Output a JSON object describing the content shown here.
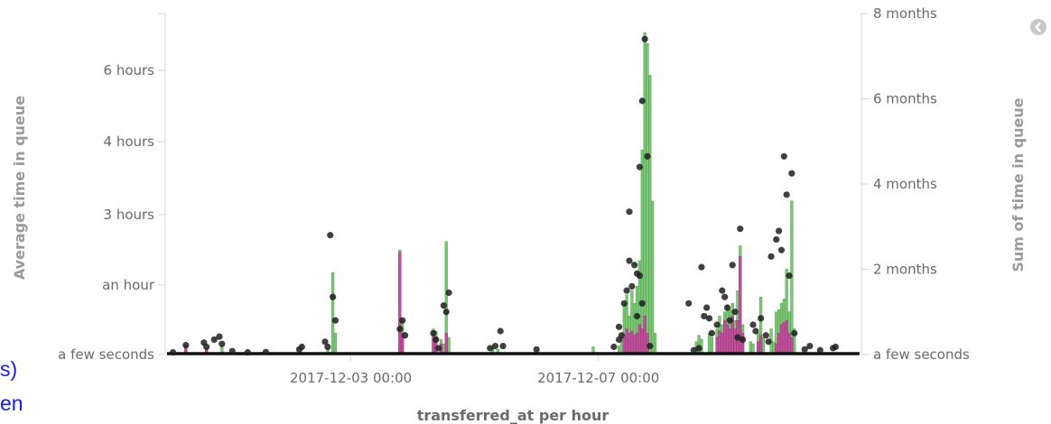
{
  "left_overlay": {
    "line1": "s)",
    "line2": "en"
  },
  "controls": {
    "collapse_icon": "chevron-left-icon"
  },
  "colors": {
    "green": "#7dc878",
    "magenta": "#c0509c",
    "dot": "#1e1e1e",
    "baseline": "#111111",
    "axis": "#d6d6d6"
  },
  "chart_data": {
    "type": "bar",
    "xlabel": "transferred_at per hour",
    "ylabel_left": "Average time in queue",
    "ylabel_right": "Sum of time in queue",
    "x_range": [
      "2017-11-30 00:00",
      "2017-12-11 06:00"
    ],
    "x_ticks": [
      {
        "time": "2017-12-03 00:00",
        "label": "2017-12-03 00:00"
      },
      {
        "time": "2017-12-07 00:00",
        "label": "2017-12-07 00:00"
      }
    ],
    "y_left_ticks": [
      {
        "hours": 0,
        "label": "a few seconds"
      },
      {
        "hours": 1,
        "label": "an hour"
      },
      {
        "hours": 3,
        "label": "3 hours"
      },
      {
        "hours": 4,
        "label": "4 hours"
      },
      {
        "hours": 6,
        "label": "6 hours"
      }
    ],
    "y_right_ticks": [
      {
        "months": 0,
        "label": "a few seconds"
      },
      {
        "months": 2,
        "label": "2 months"
      },
      {
        "months": 4,
        "label": "4 months"
      },
      {
        "months": 6,
        "label": "6 months"
      },
      {
        "months": 8,
        "label": "8 months"
      }
    ],
    "y_right_range_months": [
      0,
      8
    ],
    "series": [
      {
        "type": "bar",
        "axis": "right",
        "points": [
          [
            "2017-11-30 08:00",
            0.22
          ],
          [
            "2017-11-30 16:00",
            0.15
          ],
          [
            "2017-11-30 22:00",
            0.2
          ],
          [
            "2017-12-02 15:00",
            0.15
          ],
          [
            "2017-12-02 17:00",
            1.92
          ],
          [
            "2017-12-02 18:00",
            0.5
          ],
          [
            "2017-12-03 19:00",
            2.45
          ],
          [
            "2017-12-03 20:00",
            0.8
          ],
          [
            "2017-12-04 08:00",
            0.6
          ],
          [
            "2017-12-04 09:00",
            0.55
          ],
          [
            "2017-12-04 11:00",
            0.35
          ],
          [
            "2017-12-04 12:00",
            0.25
          ],
          [
            "2017-12-04 13:00",
            2.65
          ],
          [
            "2017-12-04 14:00",
            0.4
          ],
          [
            "2017-12-05 07:00",
            0.15
          ],
          [
            "2017-12-05 09:00",
            0.12
          ],
          [
            "2017-12-06 22:00",
            0.18
          ],
          [
            "2017-12-07 08:00",
            0.2
          ],
          [
            "2017-12-07 09:00",
            0.4
          ],
          [
            "2017-12-07 10:00",
            1.2
          ],
          [
            "2017-12-07 11:00",
            1.4
          ],
          [
            "2017-12-07 12:00",
            0.9
          ],
          [
            "2017-12-07 13:00",
            1.5
          ],
          [
            "2017-12-07 14:00",
            1.2
          ],
          [
            "2017-12-07 15:00",
            1.6
          ],
          [
            "2017-12-07 16:00",
            2.2
          ],
          [
            "2017-12-07 17:00",
            4.8
          ],
          [
            "2017-12-07 18:00",
            7.55
          ],
          [
            "2017-12-07 19:00",
            7.3
          ],
          [
            "2017-12-07 20:00",
            6.55
          ],
          [
            "2017-12-07 21:00",
            3.6
          ],
          [
            "2017-12-07 22:00",
            0.5
          ],
          [
            "2017-12-08 14:00",
            0.3
          ],
          [
            "2017-12-08 15:00",
            0.45
          ],
          [
            "2017-12-08 16:00",
            0.35
          ],
          [
            "2017-12-08 19:00",
            0.5
          ],
          [
            "2017-12-08 20:00",
            0.4
          ],
          [
            "2017-12-08 22:00",
            0.6
          ],
          [
            "2017-12-08 23:00",
            0.9
          ],
          [
            "2017-12-09 00:00",
            0.7
          ],
          [
            "2017-12-09 01:00",
            1.0
          ],
          [
            "2017-12-09 02:00",
            1.15
          ],
          [
            "2017-12-09 03:00",
            1.05
          ],
          [
            "2017-12-09 04:00",
            1.2
          ],
          [
            "2017-12-09 05:00",
            0.8
          ],
          [
            "2017-12-09 06:00",
            1.5
          ],
          [
            "2017-12-09 07:00",
            2.55
          ],
          [
            "2017-12-09 08:00",
            0.7
          ],
          [
            "2017-12-09 11:00",
            0.3
          ],
          [
            "2017-12-09 12:00",
            0.25
          ],
          [
            "2017-12-09 14:00",
            0.5
          ],
          [
            "2017-12-09 15:00",
            1.35
          ],
          [
            "2017-12-09 16:00",
            0.4
          ],
          [
            "2017-12-09 19:00",
            0.6
          ],
          [
            "2017-12-09 20:00",
            0.3
          ],
          [
            "2017-12-09 21:00",
            1.0
          ],
          [
            "2017-12-09 22:00",
            1.05
          ],
          [
            "2017-12-09 23:00",
            1.2
          ],
          [
            "2017-12-10 00:00",
            1.3
          ],
          [
            "2017-12-10 01:00",
            2.0
          ],
          [
            "2017-12-10 02:00",
            1.0
          ],
          [
            "2017-12-10 03:00",
            3.6
          ],
          [
            "2017-12-10 04:00",
            0.6
          ]
        ]
      },
      {
        "type": "bar",
        "axis": "right",
        "points": [
          [
            "2017-11-30 08:00",
            0.18
          ],
          [
            "2017-11-30 16:00",
            0.12
          ],
          [
            "2017-12-03 19:00",
            2.4
          ],
          [
            "2017-12-03 20:00",
            0.5
          ],
          [
            "2017-12-04 08:00",
            0.45
          ],
          [
            "2017-12-04 09:00",
            0.4
          ],
          [
            "2017-12-04 11:00",
            0.25
          ],
          [
            "2017-12-04 13:00",
            0.5
          ],
          [
            "2017-12-07 10:00",
            0.4
          ],
          [
            "2017-12-07 11:00",
            0.6
          ],
          [
            "2017-12-07 12:00",
            0.5
          ],
          [
            "2017-12-07 13:00",
            0.55
          ],
          [
            "2017-12-07 14:00",
            0.45
          ],
          [
            "2017-12-07 15:00",
            0.5
          ],
          [
            "2017-12-07 16:00",
            0.7
          ],
          [
            "2017-12-07 17:00",
            0.6
          ],
          [
            "2017-12-07 18:00",
            0.9
          ],
          [
            "2017-12-07 19:00",
            0.5
          ],
          [
            "2017-12-08 22:00",
            0.4
          ],
          [
            "2017-12-08 23:00",
            0.55
          ],
          [
            "2017-12-09 00:00",
            0.5
          ],
          [
            "2017-12-09 01:00",
            0.8
          ],
          [
            "2017-12-09 02:00",
            0.7
          ],
          [
            "2017-12-09 03:00",
            0.6
          ],
          [
            "2017-12-09 04:00",
            0.9
          ],
          [
            "2017-12-09 05:00",
            0.6
          ],
          [
            "2017-12-09 06:00",
            0.8
          ],
          [
            "2017-12-09 07:00",
            2.3
          ],
          [
            "2017-12-09 08:00",
            0.5
          ],
          [
            "2017-12-09 14:00",
            0.3
          ],
          [
            "2017-12-09 15:00",
            0.45
          ],
          [
            "2017-12-09 21:00",
            0.25
          ],
          [
            "2017-12-09 22:00",
            0.5
          ],
          [
            "2017-12-09 23:00",
            0.7
          ],
          [
            "2017-12-10 00:00",
            0.75
          ],
          [
            "2017-12-10 01:00",
            0.8
          ],
          [
            "2017-12-10 02:00",
            0.5
          ],
          [
            "2017-12-10 03:00",
            0.4
          ]
        ]
      },
      {
        "type": "scatter",
        "axis": "right",
        "points": [
          [
            "2017-11-30 03:00",
            0.05
          ],
          [
            "2017-11-30 08:00",
            0.22
          ],
          [
            "2017-11-30 15:00",
            0.28
          ],
          [
            "2017-11-30 16:00",
            0.18
          ],
          [
            "2017-11-30 19:00",
            0.35
          ],
          [
            "2017-11-30 21:00",
            0.42
          ],
          [
            "2017-11-30 22:00",
            0.25
          ],
          [
            "2017-12-01 02:00",
            0.08
          ],
          [
            "2017-12-01 08:00",
            0.05
          ],
          [
            "2017-12-01 15:00",
            0.06
          ],
          [
            "2017-12-02 04:00",
            0.12
          ],
          [
            "2017-12-02 05:00",
            0.18
          ],
          [
            "2017-12-02 14:00",
            0.3
          ],
          [
            "2017-12-02 15:00",
            0.18
          ],
          [
            "2017-12-02 16:00",
            2.8
          ],
          [
            "2017-12-02 17:00",
            1.35
          ],
          [
            "2017-12-02 18:00",
            0.8
          ],
          [
            "2017-12-03 19:00",
            0.6
          ],
          [
            "2017-12-03 20:00",
            0.8
          ],
          [
            "2017-12-03 21:00",
            0.45
          ],
          [
            "2017-12-04 08:00",
            0.5
          ],
          [
            "2017-12-04 09:00",
            0.35
          ],
          [
            "2017-12-04 10:00",
            0.15
          ],
          [
            "2017-12-04 12:00",
            1.15
          ],
          [
            "2017-12-04 13:00",
            1.0
          ],
          [
            "2017-12-04 14:00",
            1.45
          ],
          [
            "2017-12-05 06:00",
            0.15
          ],
          [
            "2017-12-05 08:00",
            0.2
          ],
          [
            "2017-12-05 10:00",
            0.55
          ],
          [
            "2017-12-05 11:00",
            0.2
          ],
          [
            "2017-12-06 00:00",
            0.12
          ],
          [
            "2017-12-07 06:00",
            0.18
          ],
          [
            "2017-12-07 08:00",
            0.35
          ],
          [
            "2017-12-07 08:00",
            0.65
          ],
          [
            "2017-12-07 09:00",
            0.45
          ],
          [
            "2017-12-07 10:00",
            1.2
          ],
          [
            "2017-12-07 11:00",
            1.5
          ],
          [
            "2017-12-07 12:00",
            2.2
          ],
          [
            "2017-12-07 12:00",
            3.35
          ],
          [
            "2017-12-07 13:00",
            1.6
          ],
          [
            "2017-12-07 14:00",
            2.1
          ],
          [
            "2017-12-07 15:00",
            1.9
          ],
          [
            "2017-12-07 15:00",
            0.9
          ],
          [
            "2017-12-07 16:00",
            4.4
          ],
          [
            "2017-12-07 16:00",
            1.85
          ],
          [
            "2017-12-07 17:00",
            5.95
          ],
          [
            "2017-12-07 17:00",
            1.2
          ],
          [
            "2017-12-07 18:00",
            7.4
          ],
          [
            "2017-12-07 19:00",
            4.65
          ],
          [
            "2017-12-07 20:00",
            0.2
          ],
          [
            "2017-12-08 11:00",
            1.2
          ],
          [
            "2017-12-08 13:00",
            0.1
          ],
          [
            "2017-12-08 15:00",
            0.15
          ],
          [
            "2017-12-08 16:00",
            2.05
          ],
          [
            "2017-12-08 17:00",
            0.9
          ],
          [
            "2017-12-08 18:00",
            1.1
          ],
          [
            "2017-12-08 19:00",
            0.85
          ],
          [
            "2017-12-08 20:00",
            0.5
          ],
          [
            "2017-12-08 22:00",
            0.7
          ],
          [
            "2017-12-09 00:00",
            1.5
          ],
          [
            "2017-12-09 01:00",
            1.35
          ],
          [
            "2017-12-09 02:00",
            1.1
          ],
          [
            "2017-12-09 03:00",
            0.8
          ],
          [
            "2017-12-09 04:00",
            2.1
          ],
          [
            "2017-12-09 05:00",
            1.0
          ],
          [
            "2017-12-09 06:00",
            0.4
          ],
          [
            "2017-12-09 07:00",
            2.95
          ],
          [
            "2017-12-09 08:00",
            0.35
          ],
          [
            "2017-12-09 12:00",
            0.7
          ],
          [
            "2017-12-09 13:00",
            0.55
          ],
          [
            "2017-12-09 15:00",
            0.85
          ],
          [
            "2017-12-09 17:00",
            0.45
          ],
          [
            "2017-12-09 18:00",
            0.3
          ],
          [
            "2017-12-09 19:00",
            2.3
          ],
          [
            "2017-12-09 21:00",
            2.7
          ],
          [
            "2017-12-09 22:00",
            2.9
          ],
          [
            "2017-12-09 23:00",
            2.45
          ],
          [
            "2017-12-10 00:00",
            4.65
          ],
          [
            "2017-12-10 01:00",
            3.75
          ],
          [
            "2017-12-10 02:00",
            1.85
          ],
          [
            "2017-12-10 03:00",
            4.25
          ],
          [
            "2017-12-10 04:00",
            0.5
          ],
          [
            "2017-12-10 08:00",
            0.12
          ],
          [
            "2017-12-10 10:00",
            0.2
          ],
          [
            "2017-12-10 14:00",
            0.1
          ],
          [
            "2017-12-10 19:00",
            0.15
          ],
          [
            "2017-12-10 20:00",
            0.18
          ]
        ]
      }
    ]
  }
}
